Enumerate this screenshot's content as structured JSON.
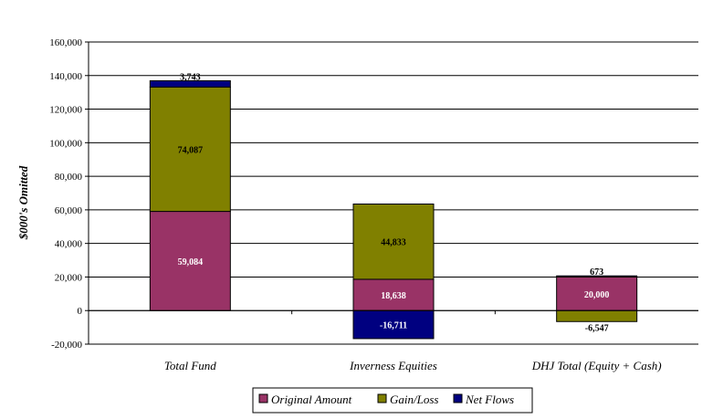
{
  "chart_data": {
    "type": "bar",
    "stacked": true,
    "ylabel": "$000's Omitted",
    "xlabel": "",
    "ylim": [
      -20000,
      160000
    ],
    "ytick_step": 20000,
    "ytick_labels": [
      "-20,000",
      "0",
      "20,000",
      "40,000",
      "60,000",
      "80,000",
      "100,000",
      "120,000",
      "140,000",
      "160,000"
    ],
    "grid": "horizontal",
    "legend_position": "bottom",
    "categories": [
      "Total Fund",
      "Inverness Equities",
      "DHJ Total (Equity + Cash)"
    ],
    "series": [
      {
        "name": "Original Amount",
        "color": "#993366",
        "values": [
          59084,
          18638,
          20000
        ],
        "labels": [
          "59,084",
          "18,638",
          "20,000"
        ]
      },
      {
        "name": "Gain/Loss",
        "color": "#808000",
        "values": [
          74087,
          44833,
          -6547
        ],
        "labels": [
          "74,087",
          "44,833",
          "-6,547"
        ]
      },
      {
        "name": "Net Flows",
        "color": "#000080",
        "values": [
          3743,
          -16711,
          673
        ],
        "labels": [
          "3,743",
          "-16,711",
          "673"
        ]
      }
    ]
  }
}
